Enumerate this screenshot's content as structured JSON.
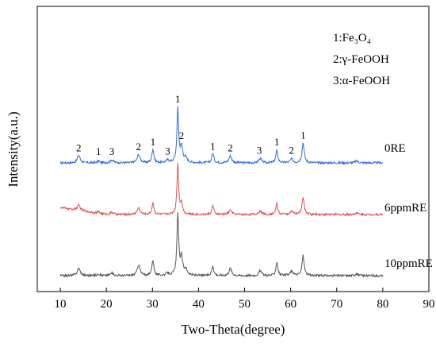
{
  "chart_data": {
    "type": "line",
    "title": "",
    "xlabel": "Two-Theta(degree)",
    "ylabel": "Intensity(a.u.)",
    "xlim": [
      5,
      90
    ],
    "xticks": [
      10,
      20,
      30,
      40,
      50,
      60,
      70,
      80,
      90
    ],
    "y_ticks_shown": false,
    "grid": false,
    "legend": {
      "placement": "top-right",
      "entries": [
        {
          "number": "1",
          "sep": ":",
          "name": "Fe₃O₄"
        },
        {
          "number": "2",
          "sep": ":",
          "name": "γ-FeOOH"
        },
        {
          "number": "3",
          "sep": ":",
          "name": "α-FeOOH"
        }
      ]
    },
    "peak_annotations": [
      {
        "label": "2",
        "x": 14.0
      },
      {
        "label": "1",
        "x": 18.3
      },
      {
        "label": "3",
        "x": 21.2
      },
      {
        "label": "2",
        "x": 27.0
      },
      {
        "label": "1",
        "x": 30.1
      },
      {
        "label": "3",
        "x": 33.3
      },
      {
        "label": "1",
        "x": 35.5
      },
      {
        "label": "2",
        "x": 36.3
      },
      {
        "label": "1",
        "x": 43.1
      },
      {
        "label": "2",
        "x": 46.9
      },
      {
        "label": "3",
        "x": 53.2
      },
      {
        "label": "1",
        "x": 57.0
      },
      {
        "label": "2",
        "x": 60.2
      },
      {
        "label": "1",
        "x": 62.7
      }
    ],
    "series": [
      {
        "name": "0RE",
        "color": "#2f6fd6",
        "x_range": [
          10,
          80
        ],
        "baseline": 0.0,
        "noise": 0.35,
        "peaks": [
          {
            "x": 14.0,
            "h": 2.5,
            "w": 0.35
          },
          {
            "x": 18.3,
            "h": 0.6,
            "w": 0.3
          },
          {
            "x": 21.2,
            "h": 0.9,
            "w": 0.4
          },
          {
            "x": 27.0,
            "h": 2.8,
            "w": 0.35
          },
          {
            "x": 30.1,
            "h": 4.5,
            "w": 0.25
          },
          {
            "x": 33.3,
            "h": 0.8,
            "w": 0.4
          },
          {
            "x": 35.5,
            "h": 17.5,
            "w": 0.22
          },
          {
            "x": 36.3,
            "h": 4.8,
            "w": 0.3
          },
          {
            "x": 37.2,
            "h": 1.5,
            "w": 0.4
          },
          {
            "x": 43.1,
            "h": 3.2,
            "w": 0.25
          },
          {
            "x": 46.9,
            "h": 2.2,
            "w": 0.35
          },
          {
            "x": 53.4,
            "h": 1.4,
            "w": 0.35
          },
          {
            "x": 57.0,
            "h": 4.0,
            "w": 0.25
          },
          {
            "x": 60.2,
            "h": 1.2,
            "w": 0.35
          },
          {
            "x": 62.7,
            "h": 6.5,
            "w": 0.28
          },
          {
            "x": 74.3,
            "h": 0.6,
            "w": 0.4
          }
        ]
      },
      {
        "name": "6ppmRE",
        "color": "#d9534f",
        "x_range": [
          10,
          80
        ],
        "baseline": 0.0,
        "noise": 0.35,
        "peaks": [
          {
            "x": 14.0,
            "h": 1.6,
            "w": 0.4
          },
          {
            "x": 18.3,
            "h": 0.5,
            "w": 0.3
          },
          {
            "x": 21.2,
            "h": 0.7,
            "w": 0.4
          },
          {
            "x": 27.0,
            "h": 2.2,
            "w": 0.35
          },
          {
            "x": 30.1,
            "h": 3.8,
            "w": 0.25
          },
          {
            "x": 35.5,
            "h": 16.5,
            "w": 0.22
          },
          {
            "x": 36.3,
            "h": 3.2,
            "w": 0.3
          },
          {
            "x": 43.1,
            "h": 2.8,
            "w": 0.25
          },
          {
            "x": 46.9,
            "h": 1.5,
            "w": 0.35
          },
          {
            "x": 53.4,
            "h": 1.2,
            "w": 0.35
          },
          {
            "x": 57.0,
            "h": 3.6,
            "w": 0.25
          },
          {
            "x": 60.2,
            "h": 1.0,
            "w": 0.35
          },
          {
            "x": 62.7,
            "h": 5.6,
            "w": 0.28
          },
          {
            "x": 74.3,
            "h": 0.5,
            "w": 0.4
          }
        ]
      },
      {
        "name": "10ppmRE",
        "color": "#555555",
        "x_range": [
          10,
          80
        ],
        "baseline": 0.0,
        "noise": 0.35,
        "peaks": [
          {
            "x": 14.0,
            "h": 2.4,
            "w": 0.4
          },
          {
            "x": 18.3,
            "h": 0.6,
            "w": 0.3
          },
          {
            "x": 21.2,
            "h": 0.8,
            "w": 0.4
          },
          {
            "x": 27.0,
            "h": 3.6,
            "w": 0.35
          },
          {
            "x": 30.1,
            "h": 5.0,
            "w": 0.25
          },
          {
            "x": 33.3,
            "h": 0.7,
            "w": 0.4
          },
          {
            "x": 35.5,
            "h": 20.0,
            "w": 0.22
          },
          {
            "x": 36.3,
            "h": 5.5,
            "w": 0.3
          },
          {
            "x": 37.2,
            "h": 1.8,
            "w": 0.4
          },
          {
            "x": 43.1,
            "h": 3.2,
            "w": 0.25
          },
          {
            "x": 46.9,
            "h": 2.4,
            "w": 0.35
          },
          {
            "x": 53.4,
            "h": 1.6,
            "w": 0.35
          },
          {
            "x": 57.0,
            "h": 4.4,
            "w": 0.25
          },
          {
            "x": 60.2,
            "h": 1.4,
            "w": 0.35
          },
          {
            "x": 62.7,
            "h": 6.5,
            "w": 0.28
          },
          {
            "x": 74.3,
            "h": 0.6,
            "w": 0.4
          }
        ]
      }
    ]
  }
}
